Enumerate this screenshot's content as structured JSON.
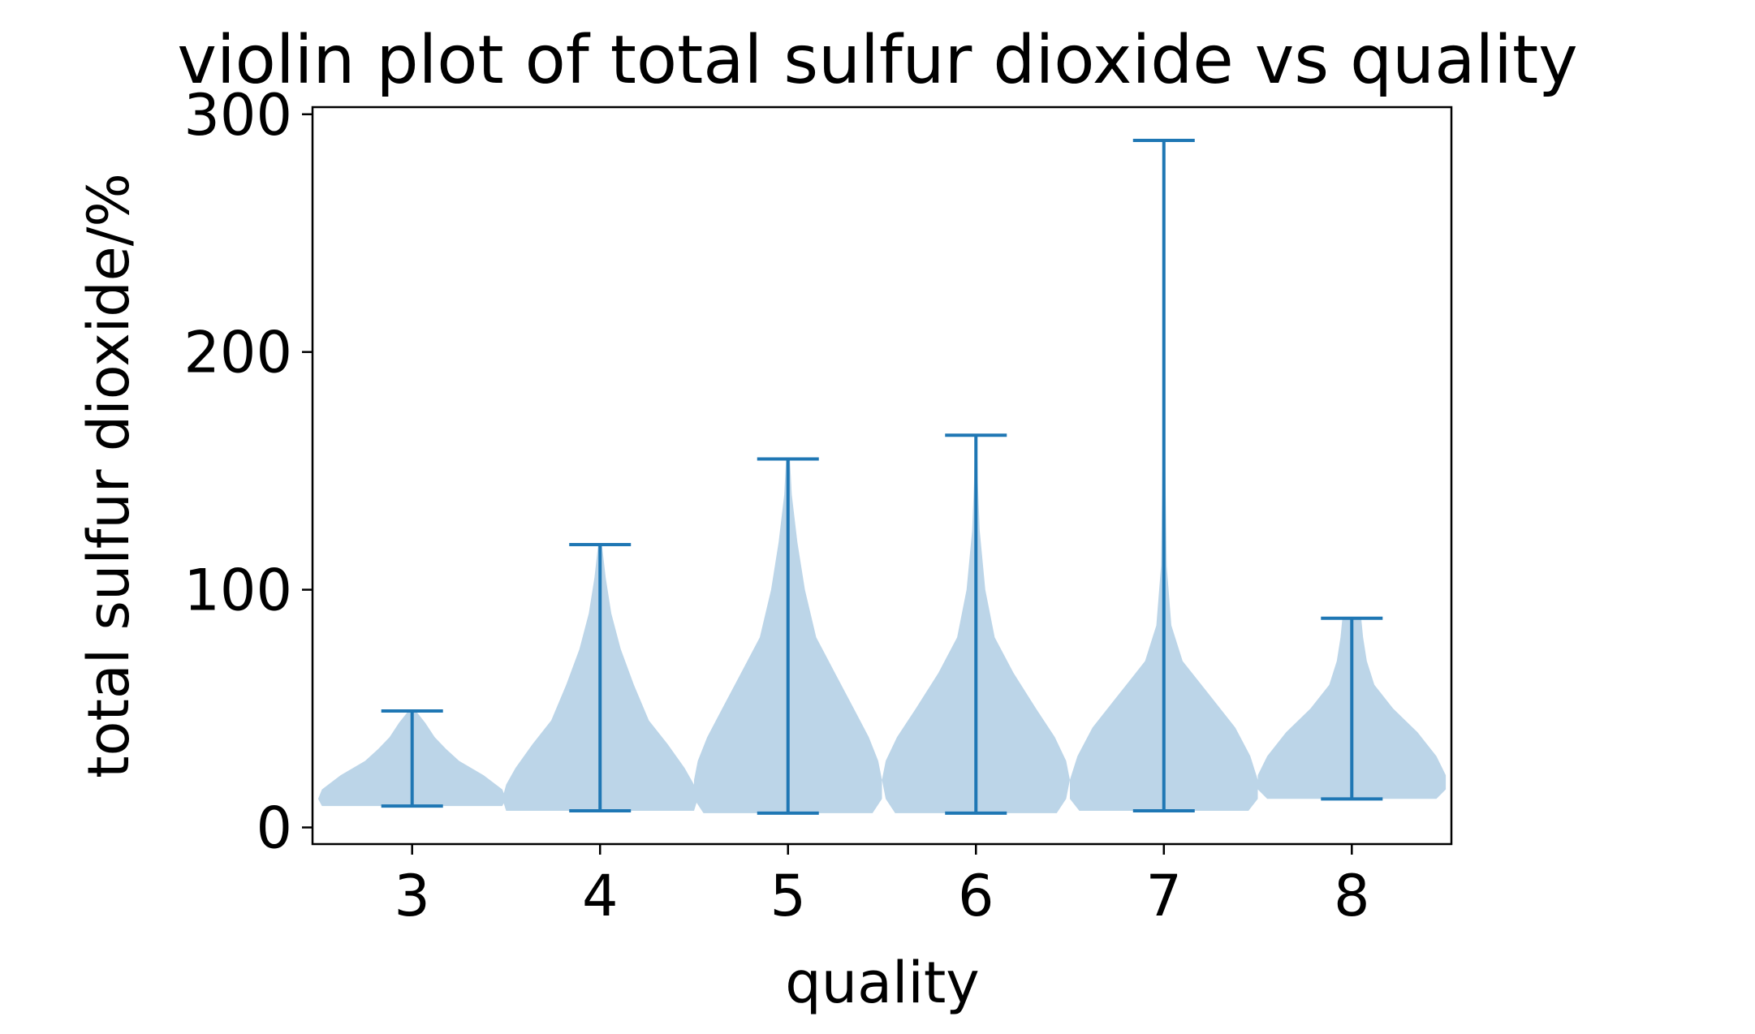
{
  "chart_data": {
    "type": "violin",
    "title": "violin plot of total sulfur dioxide vs quality",
    "xlabel": "quality",
    "ylabel": "total sulfur dioxide/%",
    "categories": [
      "3",
      "4",
      "5",
      "6",
      "7",
      "8"
    ],
    "xlim": [
      2.47,
      8.53
    ],
    "ylim": [
      -7,
      303
    ],
    "yticks": [
      0,
      100,
      200,
      300
    ],
    "grid": false,
    "colors": {
      "fill": "#bcd5e8",
      "line": "#1f77b4",
      "axis": "#000000"
    },
    "violins": [
      {
        "category": "3",
        "min": 9,
        "max": 49,
        "density": [
          [
            9,
            0.48
          ],
          [
            12,
            0.5
          ],
          [
            16,
            0.48
          ],
          [
            22,
            0.38
          ],
          [
            28,
            0.25
          ],
          [
            33,
            0.18
          ],
          [
            38,
            0.12
          ],
          [
            44,
            0.07
          ],
          [
            49,
            0.02
          ]
        ]
      },
      {
        "category": "4",
        "min": 7,
        "max": 119,
        "density": [
          [
            7,
            0.5
          ],
          [
            12,
            0.52
          ],
          [
            18,
            0.5
          ],
          [
            25,
            0.45
          ],
          [
            35,
            0.36
          ],
          [
            45,
            0.26
          ],
          [
            60,
            0.18
          ],
          [
            75,
            0.11
          ],
          [
            90,
            0.06
          ],
          [
            105,
            0.03
          ],
          [
            119,
            0.01
          ]
        ]
      },
      {
        "category": "5",
        "min": 6,
        "max": 155,
        "density": [
          [
            6,
            0.45
          ],
          [
            12,
            0.5
          ],
          [
            20,
            0.5
          ],
          [
            28,
            0.48
          ],
          [
            38,
            0.43
          ],
          [
            50,
            0.35
          ],
          [
            65,
            0.25
          ],
          [
            80,
            0.15
          ],
          [
            100,
            0.09
          ],
          [
            120,
            0.05
          ],
          [
            140,
            0.02
          ],
          [
            155,
            0.01
          ]
        ]
      },
      {
        "category": "6",
        "min": 6,
        "max": 165,
        "density": [
          [
            6,
            0.43
          ],
          [
            12,
            0.48
          ],
          [
            20,
            0.5
          ],
          [
            28,
            0.48
          ],
          [
            38,
            0.42
          ],
          [
            50,
            0.32
          ],
          [
            65,
            0.2
          ],
          [
            80,
            0.1
          ],
          [
            100,
            0.05
          ],
          [
            125,
            0.02
          ],
          [
            145,
            0.01
          ],
          [
            165,
            0.005
          ]
        ]
      },
      {
        "category": "7",
        "min": 7,
        "max": 289,
        "density": [
          [
            7,
            0.45
          ],
          [
            12,
            0.5
          ],
          [
            20,
            0.5
          ],
          [
            30,
            0.46
          ],
          [
            42,
            0.38
          ],
          [
            55,
            0.25
          ],
          [
            70,
            0.1
          ],
          [
            85,
            0.04
          ],
          [
            110,
            0.015
          ],
          [
            150,
            0.008
          ],
          [
            200,
            0.005
          ],
          [
            250,
            0.004
          ],
          [
            289,
            0.003
          ]
        ]
      },
      {
        "category": "8",
        "min": 12,
        "max": 88,
        "density": [
          [
            12,
            0.45
          ],
          [
            16,
            0.5
          ],
          [
            22,
            0.5
          ],
          [
            30,
            0.45
          ],
          [
            40,
            0.35
          ],
          [
            50,
            0.22
          ],
          [
            60,
            0.12
          ],
          [
            70,
            0.08
          ],
          [
            80,
            0.06
          ],
          [
            88,
            0.05
          ]
        ]
      }
    ]
  }
}
